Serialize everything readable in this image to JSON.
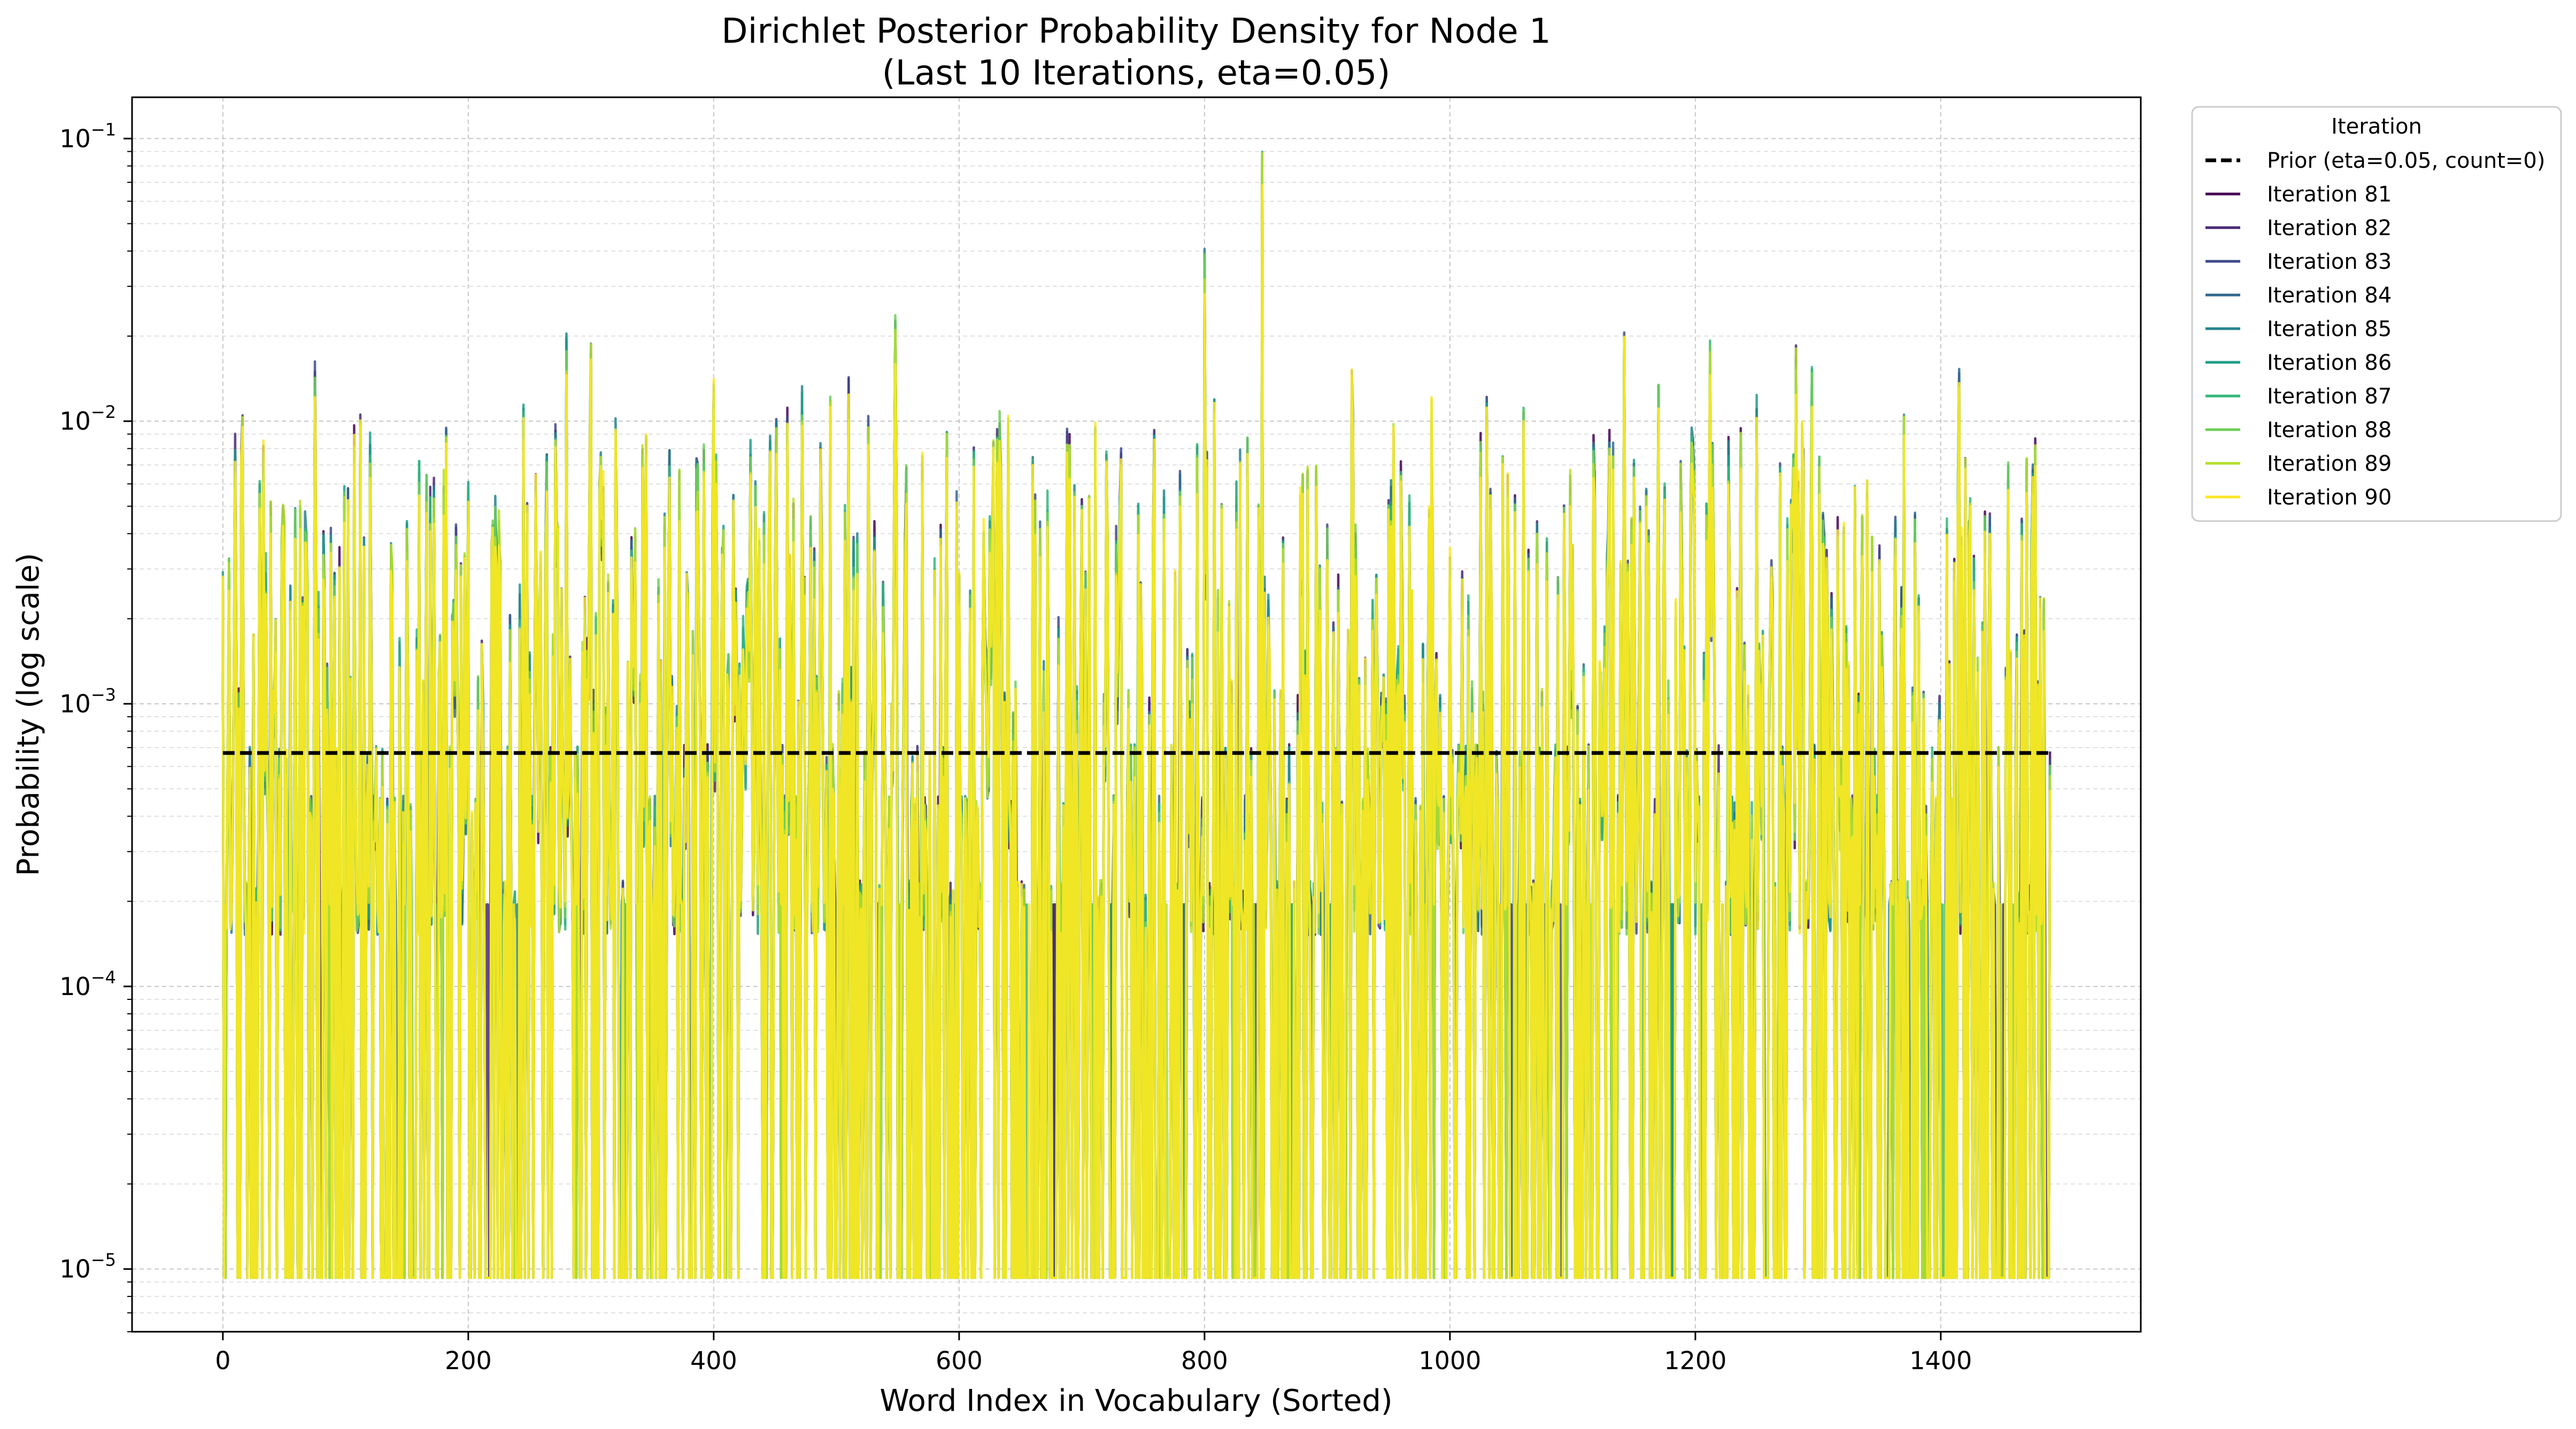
{
  "chart_data": {
    "type": "line",
    "title": "Dirichlet Posterior Probability Density for Node 1",
    "subtitle": "(Last 10 Iterations, eta=0.05)",
    "xlabel": "Word Index in Vocabulary (Sorted)",
    "ylabel": "Probability (log scale)",
    "x_range": [
      0,
      1489
    ],
    "xlim": [
      -74,
      1563
    ],
    "ylim": [
      6e-06,
      0.14
    ],
    "yscale": "log",
    "grid": true,
    "legend": {
      "title": "Iteration",
      "placement": "outside-upper-right"
    },
    "x_ticks": [
      "0",
      "200",
      "400",
      "600",
      "800",
      "1000",
      "1200",
      "1400"
    ],
    "x_tick_values": [
      0,
      200,
      400,
      600,
      800,
      1000,
      1200,
      1400
    ],
    "y_ticks": [
      {
        "value": 0.1,
        "base": "10",
        "exp": "−1"
      },
      {
        "value": 0.01,
        "base": "10",
        "exp": "−2"
      },
      {
        "value": 0.001,
        "base": "10",
        "exp": "−3"
      },
      {
        "value": 0.0001,
        "base": "10",
        "exp": "−4"
      },
      {
        "value": 1e-05,
        "base": "10",
        "exp": "−5"
      }
    ],
    "prior": {
      "name": "Prior (eta=0.05, count=0)",
      "value": 0.00067,
      "color": "#000000",
      "style": "dashed"
    },
    "floor_value": 9.3e-06,
    "peaks": [
      {
        "x": 0,
        "y": 0.0026
      },
      {
        "x": 10,
        "y": 0.0074
      },
      {
        "x": 35,
        "y": 0.0028
      },
      {
        "x": 50,
        "y": 0.0038
      },
      {
        "x": 75,
        "y": 0.0135
      },
      {
        "x": 95,
        "y": 0.003
      },
      {
        "x": 112,
        "y": 0.0088
      },
      {
        "x": 120,
        "y": 0.0075
      },
      {
        "x": 150,
        "y": 0.0039
      },
      {
        "x": 160,
        "y": 0.006
      },
      {
        "x": 172,
        "y": 0.0055
      },
      {
        "x": 200,
        "y": 0.0052
      },
      {
        "x": 220,
        "y": 0.0038
      },
      {
        "x": 245,
        "y": 0.0098
      },
      {
        "x": 255,
        "y": 0.0055
      },
      {
        "x": 280,
        "y": 0.0175
      },
      {
        "x": 300,
        "y": 0.0168
      },
      {
        "x": 320,
        "y": 0.0085
      },
      {
        "x": 345,
        "y": 0.0075
      },
      {
        "x": 360,
        "y": 0.0039
      },
      {
        "x": 400,
        "y": 0.012
      },
      {
        "x": 430,
        "y": 0.0078
      },
      {
        "x": 460,
        "y": 0.01
      },
      {
        "x": 472,
        "y": 0.0118
      },
      {
        "x": 495,
        "y": 0.0105
      },
      {
        "x": 510,
        "y": 0.0118
      },
      {
        "x": 548,
        "y": 0.0195
      },
      {
        "x": 600,
        "y": 0.0024
      },
      {
        "x": 625,
        "y": 0.0039
      },
      {
        "x": 660,
        "y": 0.0062
      },
      {
        "x": 700,
        "y": 0.0045
      },
      {
        "x": 720,
        "y": 0.0072
      },
      {
        "x": 780,
        "y": 0.0057
      },
      {
        "x": 800,
        "y": 0.0358
      },
      {
        "x": 808,
        "y": 0.0105
      },
      {
        "x": 835,
        "y": 0.0072
      },
      {
        "x": 847,
        "y": 0.081
      },
      {
        "x": 880,
        "y": 0.0054
      },
      {
        "x": 920,
        "y": 0.0125
      },
      {
        "x": 960,
        "y": 0.0068
      },
      {
        "x": 985,
        "y": 0.01
      },
      {
        "x": 1025,
        "y": 0.008
      },
      {
        "x": 1030,
        "y": 0.01
      },
      {
        "x": 1060,
        "y": 0.0092
      },
      {
        "x": 1130,
        "y": 0.008
      },
      {
        "x": 1142,
        "y": 0.017
      },
      {
        "x": 1170,
        "y": 0.0115
      },
      {
        "x": 1212,
        "y": 0.016
      },
      {
        "x": 1250,
        "y": 0.0105
      },
      {
        "x": 1282,
        "y": 0.0152
      },
      {
        "x": 1295,
        "y": 0.0128
      },
      {
        "x": 1340,
        "y": 0.0055
      },
      {
        "x": 1415,
        "y": 0.0128
      },
      {
        "x": 1440,
        "y": 0.004
      },
      {
        "x": 1455,
        "y": 0.006
      },
      {
        "x": 1475,
        "y": 0.0058
      }
    ],
    "series": [
      {
        "name": "Iteration 81",
        "color": "#440154"
      },
      {
        "name": "Iteration 82",
        "color": "#482878"
      },
      {
        "name": "Iteration 83",
        "color": "#3e4a89"
      },
      {
        "name": "Iteration 84",
        "color": "#31688e"
      },
      {
        "name": "Iteration 85",
        "color": "#26828e"
      },
      {
        "name": "Iteration 86",
        "color": "#1f9e89"
      },
      {
        "name": "Iteration 87",
        "color": "#35b779"
      },
      {
        "name": "Iteration 88",
        "color": "#6ece58"
      },
      {
        "name": "Iteration 89",
        "color": "#b5de2b"
      },
      {
        "name": "Iteration 90",
        "color": "#fde725"
      }
    ]
  }
}
